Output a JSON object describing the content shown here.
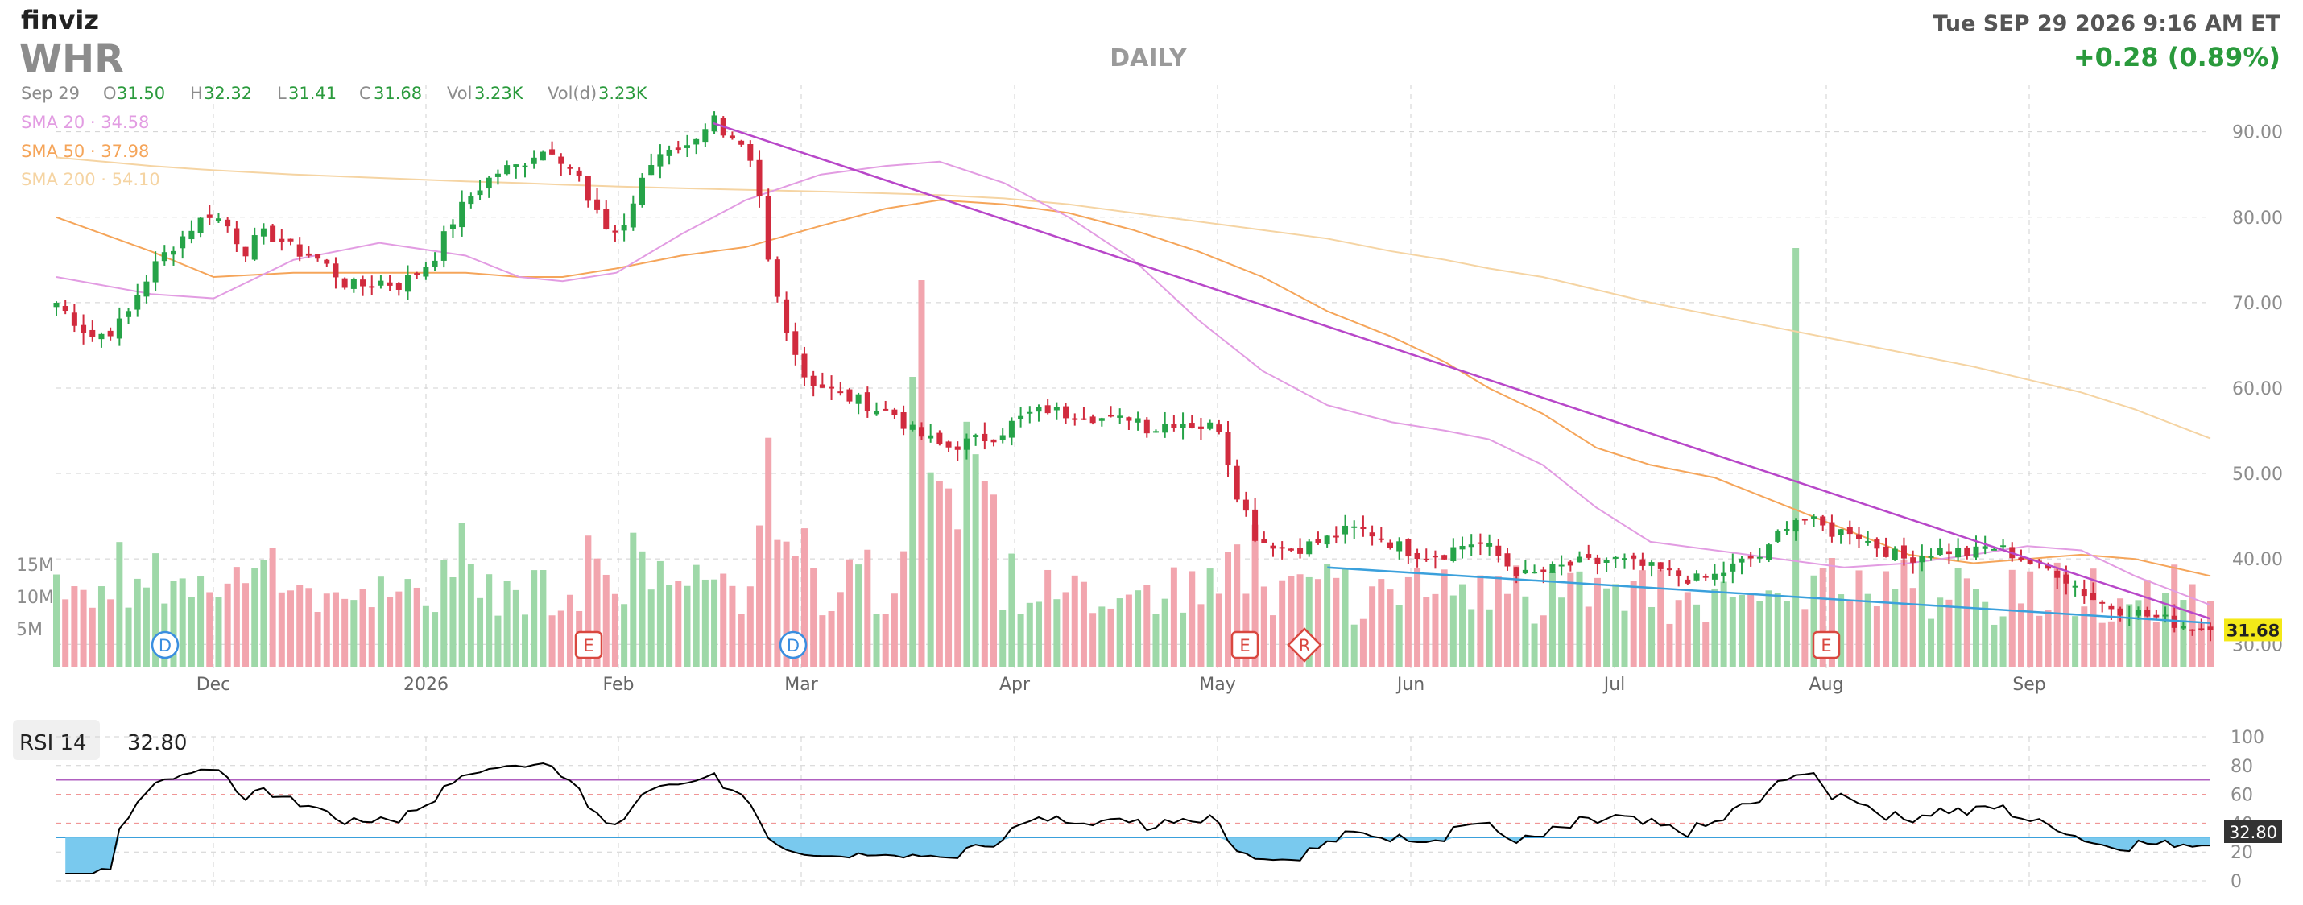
{
  "header": {
    "logo": "finviz",
    "ticker": "WHR",
    "timeframe": "DAILY",
    "datetime": "Tue SEP 29 2026 9:16 AM ET",
    "change": "+0.28 (0.89%)"
  },
  "ohlc": {
    "date": "Sep 29",
    "o_label": "O",
    "o": "31.50",
    "h_label": "H",
    "h": "32.32",
    "l_label": "L",
    "l": "31.41",
    "c_label": "C",
    "c": "31.68",
    "vol_label": "Vol",
    "vol": "3.23K",
    "vold_label": "Vol(d)",
    "vold": "3.23K"
  },
  "legend": [
    {
      "label": "SMA 20",
      "value": "34.58",
      "color": "#e29ce2"
    },
    {
      "label": "SMA 50",
      "value": "37.98",
      "color": "#f5a55a"
    },
    {
      "label": "SMA 200",
      "value": "54.10",
      "color": "#f5d4a3"
    }
  ],
  "colors": {
    "up": "#26a348",
    "down": "#d12b3e",
    "upVol": "#9ed8a8",
    "downVol": "#f2a5ae",
    "grid": "#d0d0d0",
    "trendDown": "#b847c9",
    "trendSupport": "#3aa0dc",
    "rsiLine": "#000000",
    "rsiFill": "#79c9ee",
    "lastPrice": "#f4e918"
  },
  "rsi": {
    "label": "RSI 14",
    "value": "32.80",
    "ticks": [
      "100",
      "80",
      "60",
      "40",
      "20",
      "0"
    ]
  },
  "chart_data": {
    "type": "candlestick",
    "price_axis": {
      "min": 25.5,
      "max": 96,
      "ticks": [
        "90.00",
        "80.00",
        "70.00",
        "60.00",
        "50.00",
        "40.00",
        "30.00"
      ]
    },
    "volume_axis": {
      "max_millions": 20,
      "ticks": [
        "15M",
        "10M",
        "5M"
      ]
    },
    "x_labels": [
      "Dec",
      "2026",
      "Feb",
      "Mar",
      "Apr",
      "May",
      "Jun",
      "Jul",
      "Aug",
      "Sep"
    ],
    "last_price": "31.68",
    "events": [
      {
        "label": "D",
        "kind": "dividend",
        "date": "Dec"
      },
      {
        "label": "E",
        "kind": "earnings",
        "date": "late Jan"
      },
      {
        "label": "D",
        "kind": "dividend",
        "date": "late Feb"
      },
      {
        "label": "E",
        "kind": "earnings",
        "date": "early May"
      },
      {
        "label": "R",
        "kind": "revision",
        "date": "early May"
      },
      {
        "label": "E",
        "kind": "earnings",
        "date": "early Aug"
      }
    ],
    "sma_keys": [
      {
        "t": 0,
        "sma20": 73,
        "sma50": 80,
        "sma200": 87
      },
      {
        "t": 0.044,
        "sma20": 71,
        "sma50": 76,
        "sma200": 86
      },
      {
        "t": 0.073,
        "sma20": 70.5,
        "sma50": 73,
        "sma200": 85.5
      },
      {
        "t": 0.11,
        "sma20": 75,
        "sma50": 73.5,
        "sma200": 85
      },
      {
        "t": 0.15,
        "sma20": 77,
        "sma50": 73.5,
        "sma200": 84.6
      },
      {
        "t": 0.19,
        "sma20": 75.5,
        "sma50": 73.5,
        "sma200": 84.2
      },
      {
        "t": 0.215,
        "sma20": 73,
        "sma50": 73,
        "sma200": 84
      },
      {
        "t": 0.235,
        "sma20": 72.5,
        "sma50": 73,
        "sma200": 83.8
      },
      {
        "t": 0.26,
        "sma20": 73.5,
        "sma50": 74,
        "sma200": 83.6
      },
      {
        "t": 0.29,
        "sma20": 78,
        "sma50": 75.5,
        "sma200": 83.4
      },
      {
        "t": 0.32,
        "sma20": 82,
        "sma50": 76.5,
        "sma200": 83.2
      },
      {
        "t": 0.355,
        "sma20": 85,
        "sma50": 79,
        "sma200": 83
      },
      {
        "t": 0.385,
        "sma20": 86,
        "sma50": 81,
        "sma200": 82.8
      },
      {
        "t": 0.41,
        "sma20": 86.5,
        "sma50": 82,
        "sma200": 82.6
      },
      {
        "t": 0.44,
        "sma20": 84,
        "sma50": 81.5,
        "sma200": 82.2
      },
      {
        "t": 0.47,
        "sma20": 80,
        "sma50": 80.5,
        "sma200": 81.5
      },
      {
        "t": 0.5,
        "sma20": 75,
        "sma50": 78.5,
        "sma200": 80.5
      },
      {
        "t": 0.53,
        "sma20": 68,
        "sma50": 76,
        "sma200": 79.5
      },
      {
        "t": 0.56,
        "sma20": 62,
        "sma50": 73,
        "sma200": 78.5
      },
      {
        "t": 0.59,
        "sma20": 58,
        "sma50": 69,
        "sma200": 77.5
      },
      {
        "t": 0.62,
        "sma20": 56,
        "sma50": 66,
        "sma200": 76
      },
      {
        "t": 0.645,
        "sma20": 55,
        "sma50": 63,
        "sma200": 75
      },
      {
        "t": 0.665,
        "sma20": 54,
        "sma50": 60,
        "sma200": 74
      },
      {
        "t": 0.69,
        "sma20": 51,
        "sma50": 57,
        "sma200": 73
      },
      {
        "t": 0.715,
        "sma20": 46,
        "sma50": 53,
        "sma200": 71.5
      },
      {
        "t": 0.74,
        "sma20": 42,
        "sma50": 51,
        "sma200": 70
      },
      {
        "t": 0.77,
        "sma20": 41,
        "sma50": 49.5,
        "sma200": 68.5
      },
      {
        "t": 0.8,
        "sma20": 40,
        "sma50": 46.5,
        "sma200": 67
      },
      {
        "t": 0.83,
        "sma20": 39,
        "sma50": 43.5,
        "sma200": 65.5
      },
      {
        "t": 0.86,
        "sma20": 39.5,
        "sma50": 40.5,
        "sma200": 64
      },
      {
        "t": 0.89,
        "sma20": 40.5,
        "sma50": 39.5,
        "sma200": 62.5
      },
      {
        "t": 0.915,
        "sma20": 41.5,
        "sma50": 40,
        "sma200": 61
      },
      {
        "t": 0.94,
        "sma20": 41,
        "sma50": 40.5,
        "sma200": 59.5
      },
      {
        "t": 0.965,
        "sma20": 38,
        "sma50": 40,
        "sma200": 57.5
      },
      {
        "t": 1,
        "sma20": 34.6,
        "sma50": 38,
        "sma200": 54.1
      }
    ],
    "trendlines": [
      {
        "name": "resistance",
        "from": {
          "t": 0.305,
          "p": 91
        },
        "to": {
          "t": 1,
          "p": 33
        }
      },
      {
        "name": "support",
        "from": {
          "t": 0.59,
          "p": 39
        },
        "to": {
          "t": 1,
          "p": 32.5
        }
      }
    ]
  }
}
